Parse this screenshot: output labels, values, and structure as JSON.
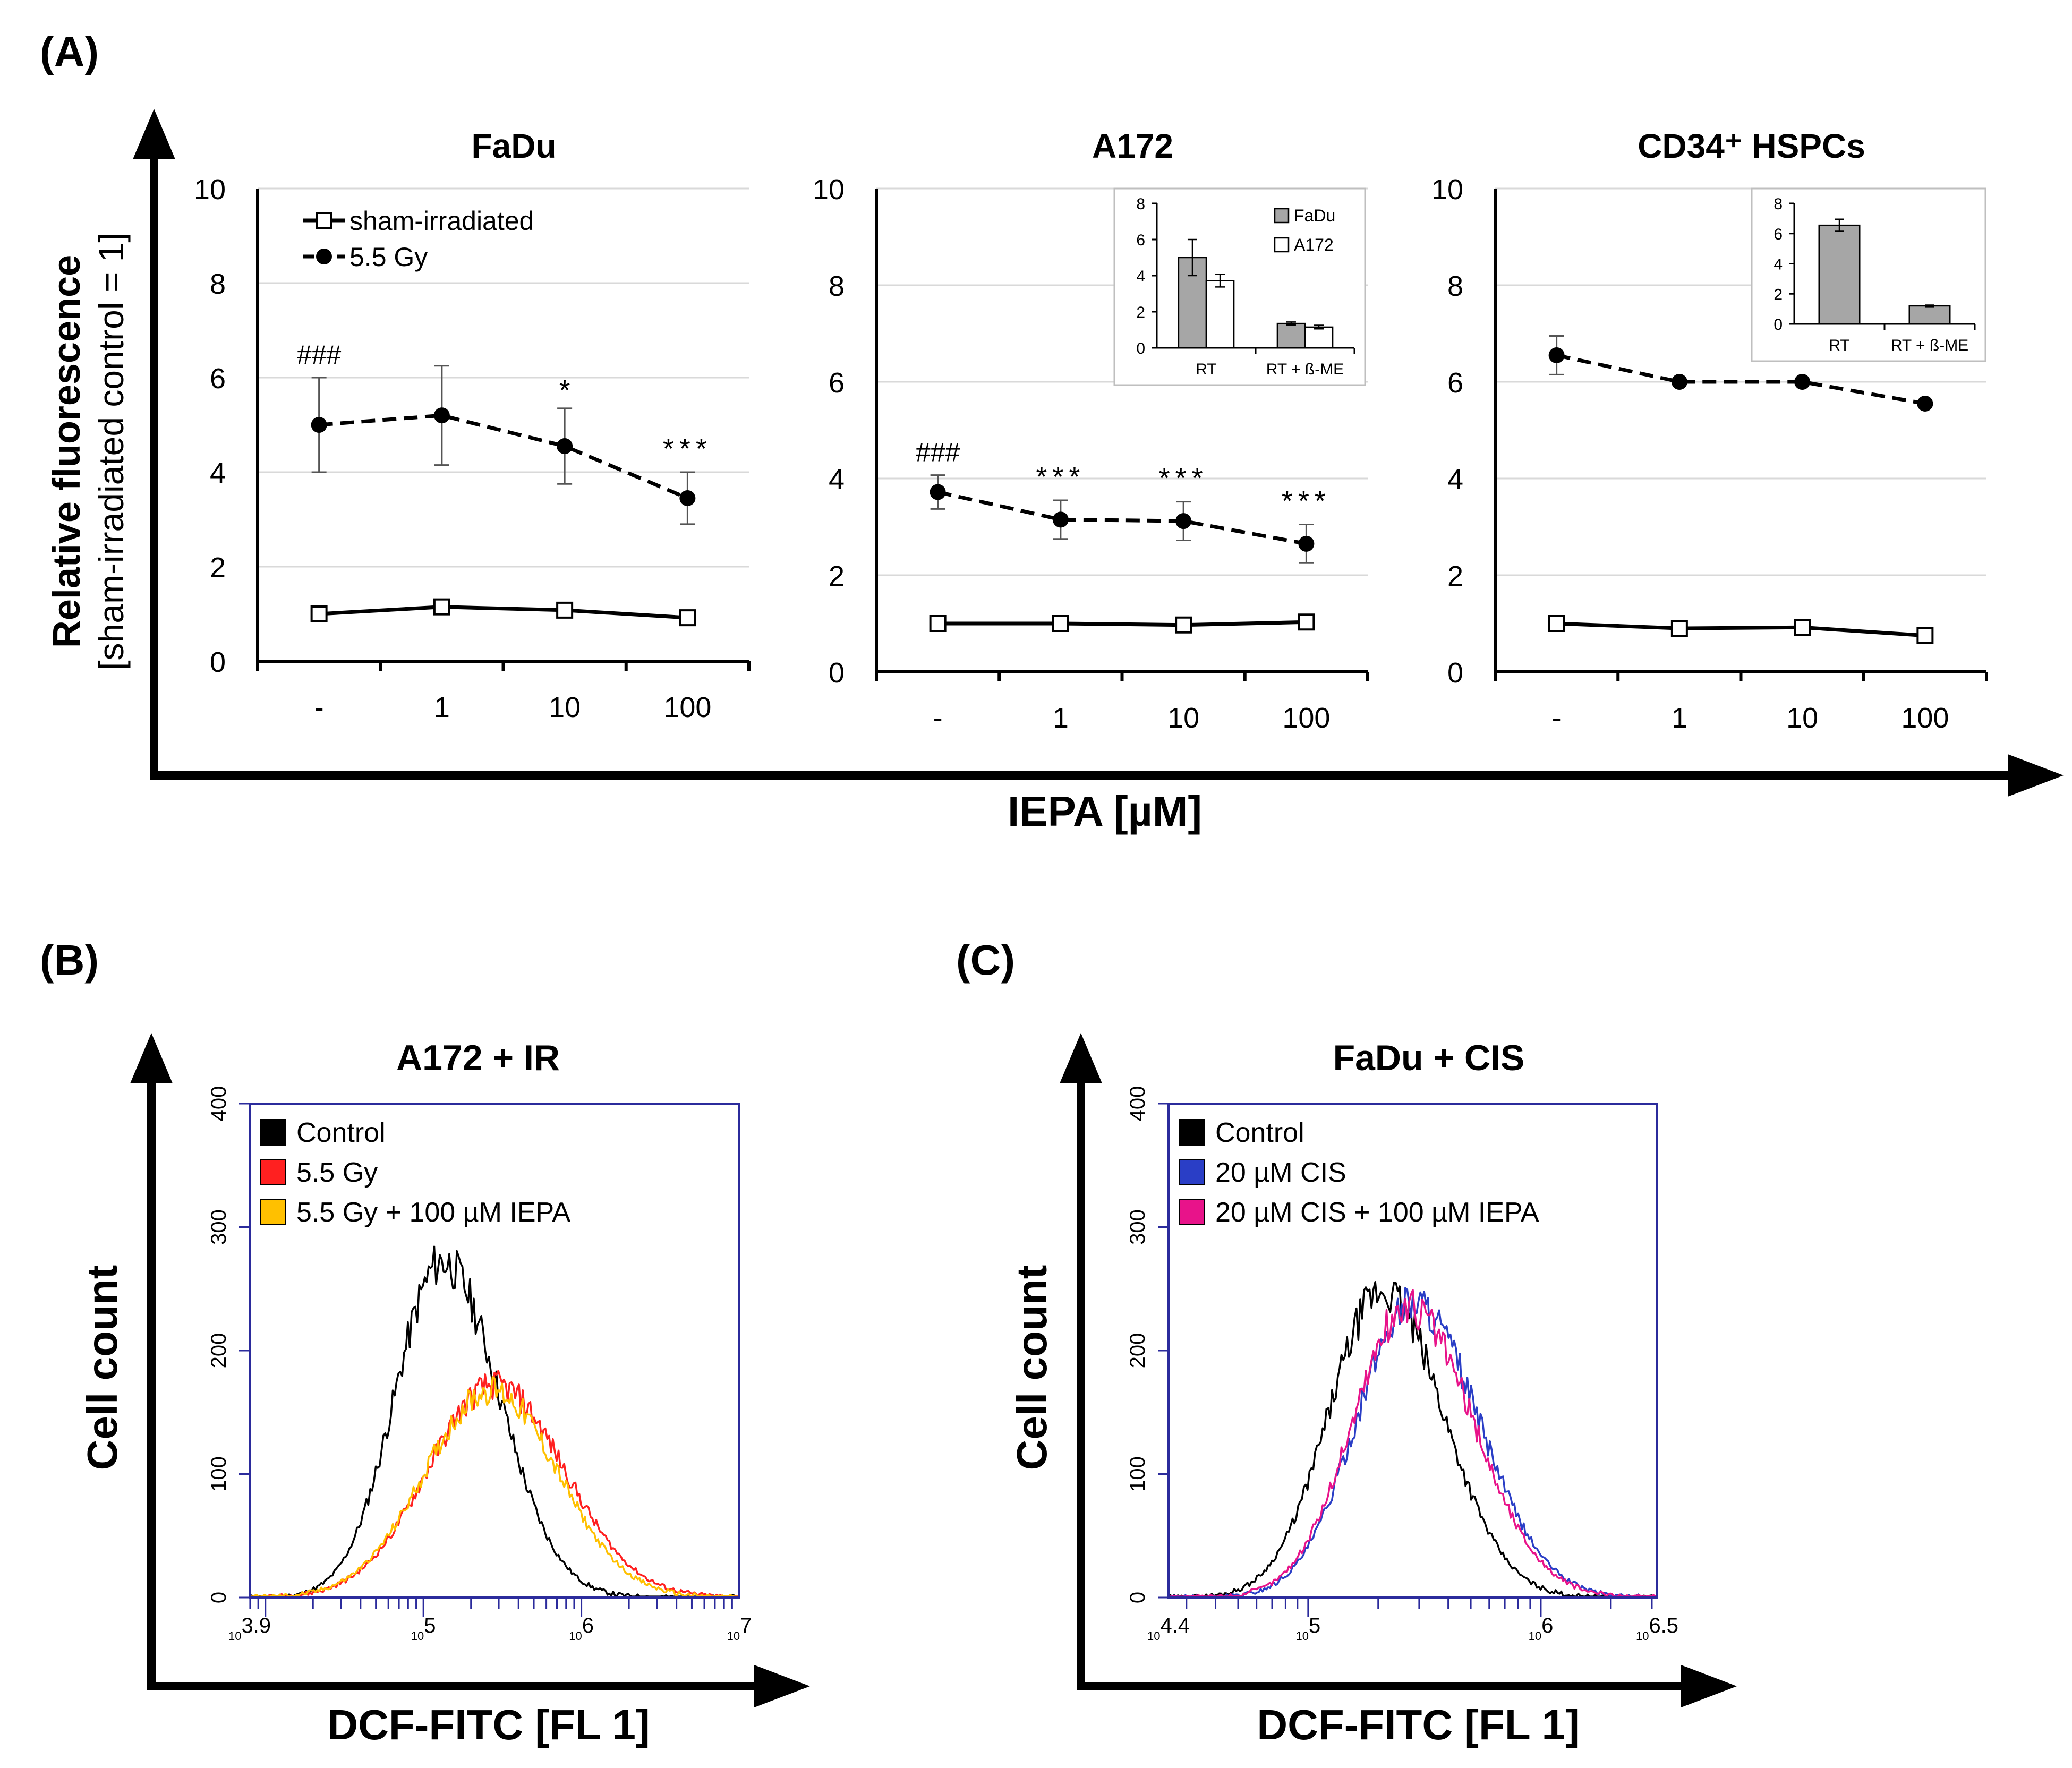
{
  "panel_labels": {
    "a": "(A)",
    "b": "(B)",
    "c": "(C)"
  },
  "panel_a": {
    "ylabel_line1": "Relative fluorescence",
    "ylabel_line2": "[sham-irradiated control = 1]",
    "xlabel": "IEPA [µM]",
    "yticks": [
      "0",
      "2",
      "4",
      "6",
      "8",
      "10"
    ],
    "xticks": [
      "-",
      "1",
      "10",
      "100"
    ],
    "legend": {
      "sham": "sham-irradiated",
      "irr": "5.5 Gy"
    }
  },
  "panel_b": {
    "title": "A172 + IR",
    "ylabel": "Cell count",
    "xlabel": "DCF-FITC [FL 1]"
  },
  "panel_c": {
    "title": "FaDu + CIS",
    "ylabel": "Cell count",
    "xlabel": "DCF-FITC [FL 1]"
  },
  "chart_data": [
    {
      "type": "line",
      "title": "FaDu",
      "categories": [
        "-",
        "1",
        "10",
        "100"
      ],
      "ylim": [
        0,
        10
      ],
      "series": [
        {
          "name": "sham-irradiated",
          "values": [
            1.0,
            1.15,
            1.08,
            0.92
          ],
          "errors": [
            0.05,
            0.08,
            0.05,
            0.05
          ],
          "style": "solid",
          "marker": "open-square"
        },
        {
          "name": "5.5 Gy",
          "values": [
            5.0,
            5.2,
            4.55,
            3.45
          ],
          "errors": [
            1.0,
            1.05,
            0.8,
            0.55
          ],
          "style": "dashed",
          "marker": "filled-circle"
        }
      ],
      "annotations": [
        "###",
        "",
        "*",
        "***"
      ]
    },
    {
      "type": "line",
      "title": "A172",
      "categories": [
        "-",
        "1",
        "10",
        "100"
      ],
      "ylim": [
        0,
        10
      ],
      "series": [
        {
          "name": "sham-irradiated",
          "values": [
            1.0,
            1.0,
            0.97,
            1.03
          ],
          "errors": [
            0.05,
            0.05,
            0.05,
            0.05
          ],
          "style": "solid",
          "marker": "open-square"
        },
        {
          "name": "5.5 Gy",
          "values": [
            3.72,
            3.15,
            3.12,
            2.65
          ],
          "errors": [
            0.35,
            0.4,
            0.4,
            0.4
          ],
          "style": "dashed",
          "marker": "filled-circle"
        }
      ],
      "annotations": [
        "###",
        "***",
        "***",
        "***"
      ],
      "inset": {
        "type": "bar",
        "categories": [
          "RT",
          "RT + ß-ME"
        ],
        "ylim": [
          0,
          8
        ],
        "yticks": [
          "0",
          "2",
          "4",
          "6",
          "8"
        ],
        "series": [
          {
            "name": "FaDu",
            "values": [
              5.0,
              1.35
            ],
            "errors": [
              1.0,
              0.08
            ],
            "color": "#a6a6a6"
          },
          {
            "name": "A172",
            "values": [
              3.72,
              1.15
            ],
            "errors": [
              0.35,
              0.1
            ],
            "color": "#ffffff"
          }
        ]
      }
    },
    {
      "type": "line",
      "title": "CD34⁺ HSPCs",
      "categories": [
        "-",
        "1",
        "10",
        "100"
      ],
      "ylim": [
        0,
        10
      ],
      "series": [
        {
          "name": "sham-irradiated",
          "values": [
            1.0,
            0.9,
            0.92,
            0.75
          ],
          "errors": [
            0.04,
            0.04,
            0.04,
            0.04
          ],
          "style": "solid",
          "marker": "open-square"
        },
        {
          "name": "5.5 Gy",
          "values": [
            6.55,
            6.0,
            6.0,
            5.55
          ],
          "errors": [
            0.4,
            0.05,
            0.05,
            0.05
          ],
          "style": "dashed",
          "marker": "filled-circle"
        }
      ],
      "annotations": [
        "",
        "",
        "",
        ""
      ],
      "inset": {
        "type": "bar",
        "categories": [
          "RT",
          "RT + ß-ME"
        ],
        "ylim": [
          0,
          8
        ],
        "yticks": [
          "0",
          "2",
          "4",
          "6",
          "8"
        ],
        "series": [
          {
            "name": "CD34⁺ HSPCs",
            "values": [
              6.55,
              1.2
            ],
            "errors": [
              0.4,
              0.05
            ],
            "color": "#a6a6a6"
          }
        ]
      }
    },
    {
      "type": "area",
      "title": "A172 + IR",
      "xscale": "log",
      "xlim": [
        3.9,
        7
      ],
      "ylim": [
        0,
        400
      ],
      "yticks": [
        "0",
        "100",
        "200",
        "300",
        "400"
      ],
      "xticks": [
        "10^3.9",
        "10^5",
        "10^6",
        "10^7"
      ],
      "series": [
        {
          "name": "Control",
          "color": "#000000",
          "peak_log": 5.12,
          "peak": 272,
          "sd_left": 0.3,
          "sd_right": 0.36
        },
        {
          "name": "5.5 Gy",
          "color": "#ff2020",
          "peak_log": 5.45,
          "peak": 172,
          "sd_left": 0.42,
          "sd_right": 0.44
        },
        {
          "name": "5.5 Gy + 100 µM IEPA",
          "color": "#ffc000",
          "peak_log": 5.43,
          "peak": 168,
          "sd_left": 0.42,
          "sd_right": 0.42
        }
      ]
    },
    {
      "type": "area",
      "title": "FaDu + CIS",
      "xscale": "log",
      "xlim": [
        4.4,
        6.5
      ],
      "ylim": [
        0,
        400
      ],
      "yticks": [
        "0",
        "100",
        "200",
        "300",
        "400"
      ],
      "xticks": [
        "10^4.4",
        "10^5",
        "10^6",
        "10^6.5"
      ],
      "series": [
        {
          "name": "Control",
          "color": "#000000",
          "peak_log": 5.32,
          "peak": 248,
          "sd_left": 0.23,
          "sd_right": 0.26
        },
        {
          "name": "20 µM CIS",
          "color": "#2a3ec6",
          "peak_log": 5.45,
          "peak": 240,
          "sd_left": 0.24,
          "sd_right": 0.28
        },
        {
          "name": "20 µM CIS + 100 µM IEPA",
          "color": "#e8138a",
          "peak_log": 5.43,
          "peak": 235,
          "sd_left": 0.24,
          "sd_right": 0.28
        }
      ]
    }
  ]
}
